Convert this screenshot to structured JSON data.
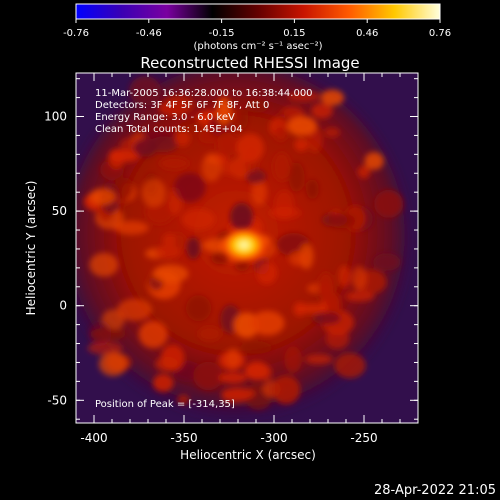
{
  "colorbar": {
    "ticks": [
      "-0.76",
      "-0.46",
      "-0.15",
      "0.15",
      "0.46",
      "0.76"
    ],
    "unit_label": "(photons cm⁻² s⁻¹ asec⁻²)",
    "colormap": [
      "#0000ff",
      "#3a00b4",
      "#7a00a0",
      "#000000",
      "#640000",
      "#c81400",
      "#ff5a00",
      "#ffc800",
      "#ffffdc"
    ]
  },
  "chart_data": {
    "type": "heatmap",
    "title": "Reconstructed RHESSI Image",
    "xlabel": "Heliocentric X (arcsec)",
    "ylabel": "Heliocentric Y (arcsec)",
    "xlim": [
      -410,
      -220
    ],
    "ylim": [
      -62,
      123
    ],
    "x_ticks": [
      -400,
      -350,
      -300,
      -250
    ],
    "y_ticks": [
      -50,
      0,
      50,
      100
    ],
    "value_range": [
      -0.76,
      0.76
    ],
    "peak": {
      "x": -314,
      "y": 35
    },
    "info_lines": [
      "11-Mar-2005 16:36:28.000 to 16:38:44.000",
      "Detectors: 3F 4F 5F 6F 7F 8F, Att 0",
      "Energy Range: 3.0 - 6.0 keV",
      "Clean     Total counts: 1.45E+04"
    ],
    "peak_label": "Position of Peak = [-314,35]"
  },
  "footer": {
    "timestamp": "28-Apr-2022 21:05"
  }
}
